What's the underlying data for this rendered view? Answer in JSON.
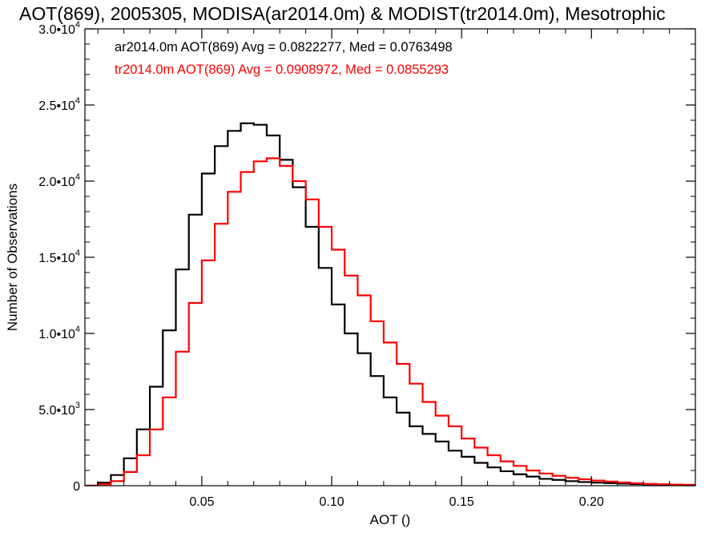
{
  "chart_data": {
    "type": "line",
    "title": "AOT(869), 2005305, MODISA(ar2014.0m) & MODIST(tr2014.0m), Mesotrophic",
    "xlabel": "AOT ()",
    "ylabel": "Number of Observations",
    "xlim": [
      0.005,
      0.24
    ],
    "ylim": [
      0,
      30000
    ],
    "x_ticks": [
      {
        "value": 0.05,
        "label": "0.05"
      },
      {
        "value": 0.1,
        "label": "0.10"
      },
      {
        "value": 0.15,
        "label": "0.15"
      },
      {
        "value": 0.2,
        "label": "0.20"
      }
    ],
    "y_ticks": [
      {
        "value": 0,
        "mant": "0",
        "exp": ""
      },
      {
        "value": 5000,
        "mant": "5.0•10",
        "exp": "3"
      },
      {
        "value": 10000,
        "mant": "1.0•10",
        "exp": "4"
      },
      {
        "value": 15000,
        "mant": "1.5•10",
        "exp": "4"
      },
      {
        "value": 20000,
        "mant": "2.0•10",
        "exp": "4"
      },
      {
        "value": 25000,
        "mant": "2.5•10",
        "exp": "4"
      },
      {
        "value": 30000,
        "mant": "3.0•10",
        "exp": "4"
      }
    ],
    "step": "histogram",
    "grid": false,
    "series": [
      {
        "name": "ar2014.0m",
        "color": "#000000",
        "annotation": "ar2014.0m AOT(869) Avg = 0.0822277, Med = 0.0763498",
        "x": [
          0.005,
          0.01,
          0.015,
          0.02,
          0.025,
          0.03,
          0.035,
          0.04,
          0.045,
          0.05,
          0.055,
          0.06,
          0.065,
          0.07,
          0.075,
          0.08,
          0.085,
          0.09,
          0.095,
          0.1,
          0.105,
          0.11,
          0.115,
          0.12,
          0.125,
          0.13,
          0.135,
          0.14,
          0.145,
          0.15,
          0.155,
          0.16,
          0.165,
          0.17,
          0.175,
          0.18,
          0.185,
          0.19,
          0.195,
          0.2,
          0.205,
          0.21,
          0.215,
          0.22,
          0.225,
          0.23,
          0.235,
          0.24
        ],
        "y": [
          0,
          200,
          700,
          1800,
          3700,
          6500,
          10200,
          14200,
          17800,
          20500,
          22300,
          23300,
          23800,
          23700,
          23000,
          21400,
          19600,
          17000,
          14300,
          11900,
          10000,
          8700,
          7200,
          5800,
          4800,
          3900,
          3400,
          2900,
          2300,
          1900,
          1500,
          1200,
          950,
          750,
          600,
          450,
          380,
          300,
          240,
          200,
          170,
          140,
          110,
          90,
          75,
          60,
          50,
          40
        ]
      },
      {
        "name": "tr2014.0m",
        "color": "#ff0000",
        "annotation": "tr2014.0m AOT(869) Avg = 0.0908972, Med = 0.0855293",
        "x": [
          0.005,
          0.01,
          0.015,
          0.02,
          0.025,
          0.03,
          0.035,
          0.04,
          0.045,
          0.05,
          0.055,
          0.06,
          0.065,
          0.07,
          0.075,
          0.08,
          0.085,
          0.09,
          0.095,
          0.1,
          0.105,
          0.11,
          0.115,
          0.12,
          0.125,
          0.13,
          0.135,
          0.14,
          0.145,
          0.15,
          0.155,
          0.16,
          0.165,
          0.17,
          0.175,
          0.18,
          0.185,
          0.19,
          0.195,
          0.2,
          0.205,
          0.21,
          0.215,
          0.22,
          0.225,
          0.23,
          0.235,
          0.24
        ],
        "y": [
          0,
          100,
          300,
          900,
          2000,
          3700,
          5800,
          8800,
          12000,
          14800,
          17200,
          19300,
          20600,
          21300,
          21500,
          21000,
          20000,
          18800,
          17000,
          15500,
          13800,
          12500,
          10800,
          9400,
          8000,
          6700,
          5500,
          4600,
          3900,
          3100,
          2500,
          2000,
          1600,
          1300,
          1000,
          800,
          650,
          520,
          420,
          340,
          270,
          210,
          160,
          120,
          95,
          75,
          60,
          45
        ]
      }
    ]
  }
}
